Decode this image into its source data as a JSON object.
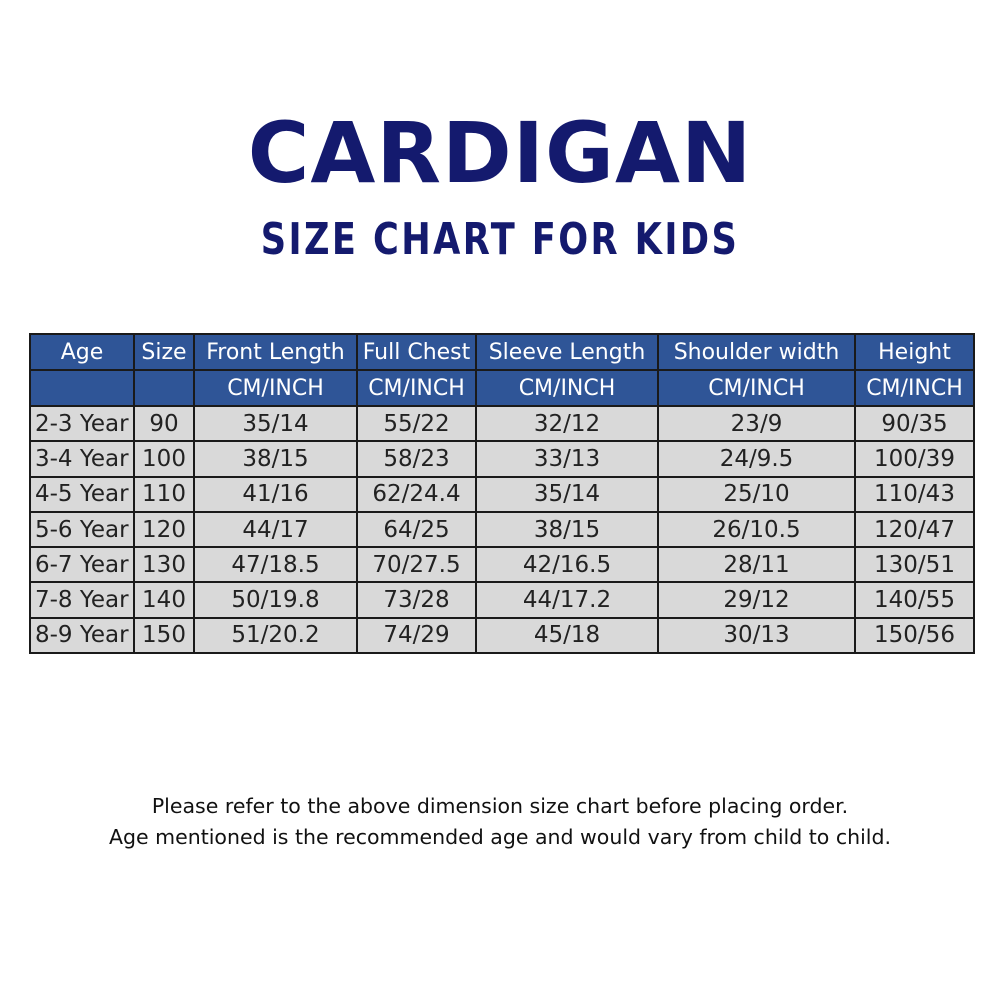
{
  "title": "CARDIGAN",
  "subtitle": "SIZE CHART FOR KIDS",
  "colors": {
    "title": "#141a6e",
    "header_bg": "#2f5597",
    "cell_bg": "#d9d9d9"
  },
  "table": {
    "headers": [
      "Age",
      "Size",
      "Front Length",
      "Full Chest",
      "Sleeve Length",
      "Shoulder width",
      "Height"
    ],
    "units": [
      "",
      "",
      "CM/INCH",
      "CM/INCH",
      "CM/INCH",
      "CM/INCH",
      "CM/INCH"
    ],
    "rows": [
      [
        "2-3 Year",
        "90",
        "35/14",
        "55/22",
        "32/12",
        "23/9",
        "90/35"
      ],
      [
        "3-4 Year",
        "100",
        "38/15",
        "58/23",
        "33/13",
        "24/9.5",
        "100/39"
      ],
      [
        "4-5 Year",
        "110",
        "41/16",
        "62/24.4",
        "35/14",
        "25/10",
        "110/43"
      ],
      [
        "5-6 Year",
        "120",
        "44/17",
        "64/25",
        "38/15",
        "26/10.5",
        "120/47"
      ],
      [
        "6-7 Year",
        "130",
        "47/18.5",
        "70/27.5",
        "42/16.5",
        "28/11",
        "130/51"
      ],
      [
        "7-8 Year",
        "140",
        "50/19.8",
        "73/28",
        "44/17.2",
        "29/12",
        "140/55"
      ],
      [
        "8-9 Year",
        "150",
        "51/20.2",
        "74/29",
        "45/18",
        "30/13",
        "150/56"
      ]
    ]
  },
  "notes": [
    "Please refer to the above dimension size chart before placing order.",
    "Age mentioned is the recommended age and would vary from child to child."
  ]
}
